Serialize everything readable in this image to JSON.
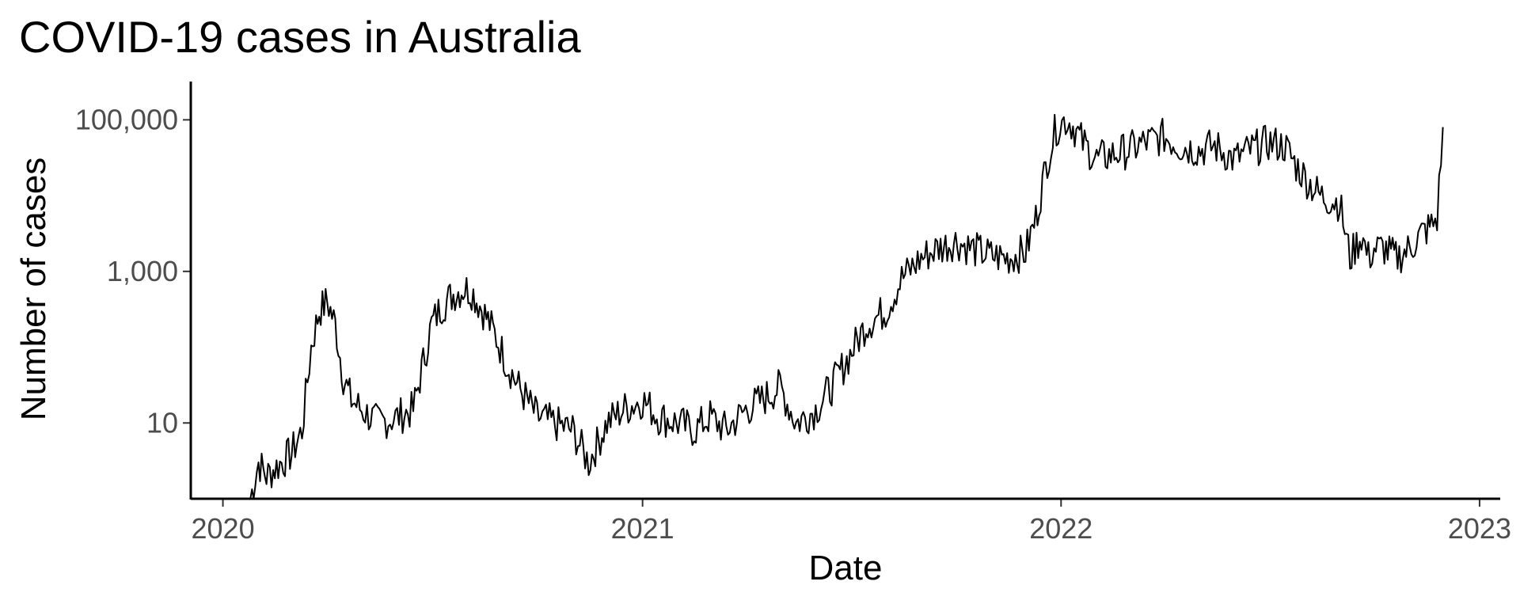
{
  "chart_data": {
    "type": "line",
    "title": "COVID-19 cases in Australia",
    "xlabel": "Date",
    "ylabel": "Number of cases",
    "y_scale": "log10",
    "ylim": [
      1,
      320000
    ],
    "xlim": [
      "2019-12-04",
      "2023-01-19"
    ],
    "grid": false,
    "legend": "none",
    "line_color": "#000000",
    "x_ticks": [
      {
        "date": "2020-01-01",
        "label": "2020"
      },
      {
        "date": "2021-01-01",
        "label": "2021"
      },
      {
        "date": "2022-01-01",
        "label": "2022"
      },
      {
        "date": "2023-01-01",
        "label": "2023"
      }
    ],
    "y_ticks": [
      {
        "value": 10,
        "label": "10"
      },
      {
        "value": 1000,
        "label": "1,000"
      },
      {
        "value": 100000,
        "label": "100,000"
      }
    ],
    "series": [
      {
        "x": [
          "2020-01-25",
          "2020-02-01",
          "2020-02-08",
          "2020-03-01",
          "2020-03-10",
          "2020-03-18",
          "2020-03-25",
          "2020-04-01",
          "2020-04-08",
          "2020-04-15",
          "2020-04-22",
          "2020-05-01",
          "2020-05-15",
          "2020-06-01",
          "2020-06-15",
          "2020-07-01",
          "2020-07-10",
          "2020-07-20",
          "2020-07-30",
          "2020-08-05",
          "2020-08-15",
          "2020-08-25",
          "2020-09-05",
          "2020-09-15",
          "2020-10-01",
          "2020-10-15",
          "2020-11-01",
          "2020-11-15",
          "2020-12-01",
          "2020-12-15",
          "2021-01-01",
          "2021-01-15",
          "2021-02-01",
          "2021-02-15",
          "2021-03-01",
          "2021-03-15",
          "2021-04-01",
          "2021-04-15",
          "2021-05-01",
          "2021-05-15",
          "2021-06-01",
          "2021-06-15",
          "2021-07-01",
          "2021-07-15",
          "2021-08-01",
          "2021-08-15",
          "2021-09-01",
          "2021-09-15",
          "2021-10-01",
          "2021-10-15",
          "2021-11-01",
          "2021-11-15",
          "2021-12-01",
          "2021-12-10",
          "2021-12-20",
          "2021-12-28",
          "2022-01-05",
          "2022-01-10",
          "2022-01-20",
          "2022-02-01",
          "2022-02-15",
          "2022-03-01",
          "2022-03-15",
          "2022-04-01",
          "2022-04-15",
          "2022-05-01",
          "2022-05-15",
          "2022-06-01",
          "2022-06-15",
          "2022-07-01",
          "2022-07-15",
          "2022-07-25",
          "2022-08-05",
          "2022-08-15",
          "2022-09-01",
          "2022-09-10",
          "2022-09-20",
          "2022-09-26",
          "2022-10-01",
          "2022-10-10",
          "2022-10-20",
          "2022-11-01",
          "2022-11-10",
          "2022-11-20",
          "2022-11-25",
          "2022-11-30"
        ],
        "y": [
          1,
          3,
          2,
          4,
          8,
          100,
          300,
          400,
          200,
          40,
          20,
          15,
          10,
          12,
          15,
          200,
          350,
          500,
          600,
          550,
          300,
          150,
          60,
          30,
          12,
          10,
          8,
          3,
          10,
          15,
          20,
          12,
          10,
          8,
          12,
          8,
          15,
          20,
          30,
          10,
          15,
          30,
          80,
          200,
          300,
          800,
          1500,
          2000,
          2500,
          2000,
          1600,
          1500,
          1800,
          5000,
          30000,
          80000,
          100000,
          90000,
          50000,
          30000,
          35000,
          40000,
          50000,
          60000,
          45000,
          40000,
          45000,
          30000,
          40000,
          50000,
          45000,
          25000,
          15000,
          10000,
          8000,
          1500,
          3000,
          1500,
          2000,
          2000,
          1500,
          2000,
          3000,
          4000,
          5000,
          80000
        ]
      }
    ]
  }
}
